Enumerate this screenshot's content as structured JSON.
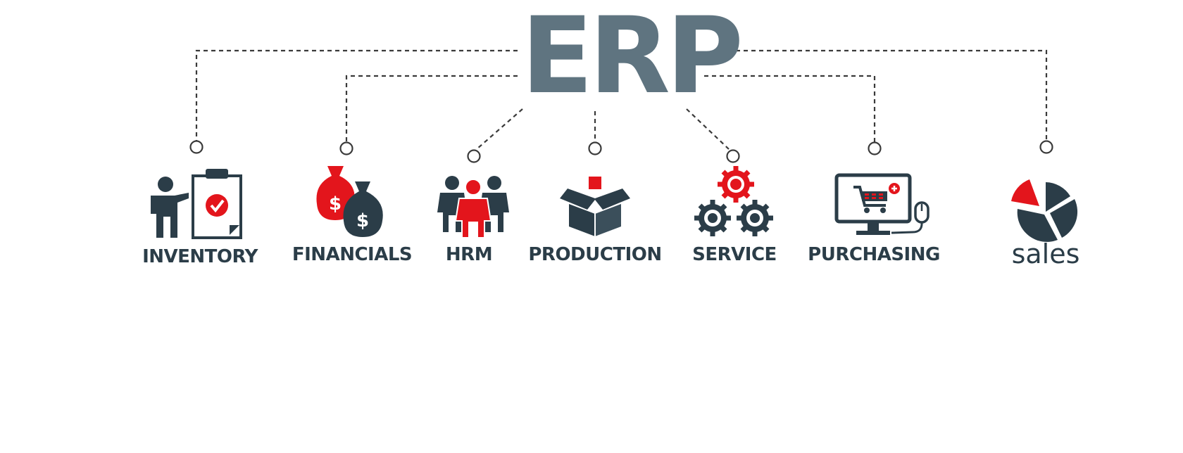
{
  "title": "ERP",
  "colors": {
    "title": "#5f7480",
    "dark": "#2b3d48",
    "accent": "#e3151c",
    "line": "#3a3a3a"
  },
  "modules": [
    {
      "key": "inventory",
      "label": "INVENTORY",
      "icon": "inventory-clipboard-icon"
    },
    {
      "key": "financials",
      "label": "FINANCIALS",
      "icon": "money-bags-icon"
    },
    {
      "key": "hrm",
      "label": "HRM",
      "icon": "people-group-icon"
    },
    {
      "key": "production",
      "label": "PRODUCTION",
      "icon": "open-box-icon"
    },
    {
      "key": "service",
      "label": "SERVICE",
      "icon": "gears-icon"
    },
    {
      "key": "purchasing",
      "label": "PURCHASING",
      "icon": "shopping-cart-monitor-icon"
    },
    {
      "key": "sales",
      "label": "sales",
      "icon": "pie-chart-icon"
    }
  ]
}
